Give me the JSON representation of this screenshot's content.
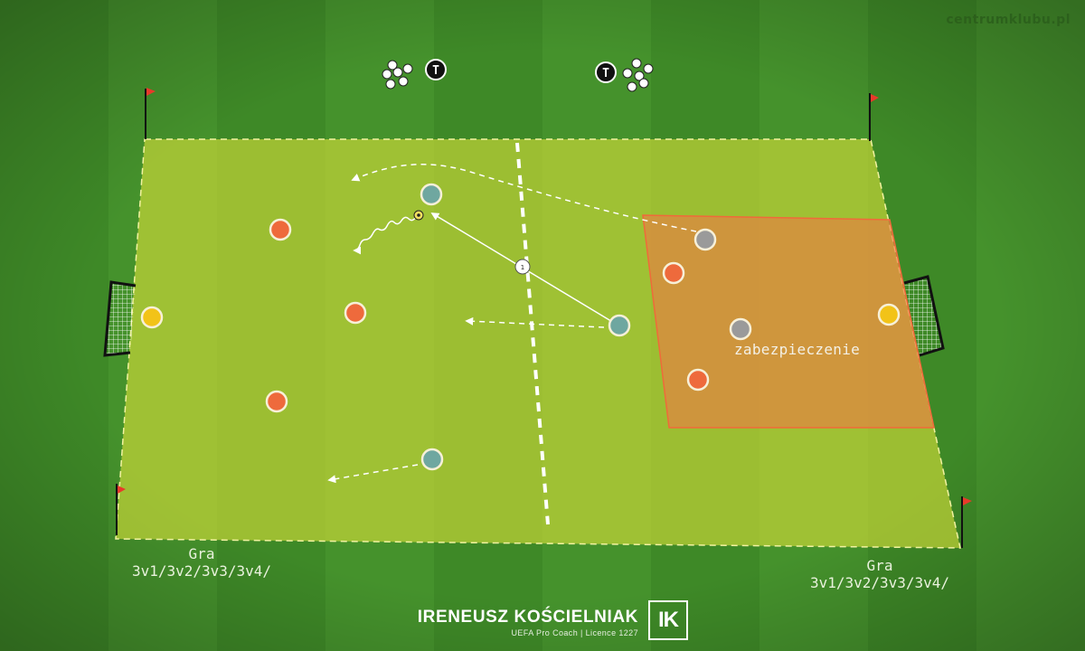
{
  "watermark": "centrumklubu.pl",
  "labels": {
    "left_game_line1": "Gra",
    "left_game_line2": "3v1/3v2/3v3/3v4/",
    "right_game_line1": "Gra",
    "right_game_line2": "3v1/3v2/3v3/3v4/",
    "zone": "zabezpieczenie"
  },
  "credit": {
    "name": "IRENEUSZ KOŚCIELNIAK",
    "subtitle": "UEFA Pro Coach  |  Licence 1227",
    "logo": "IK"
  },
  "markers": {
    "trainer_symbol": "T",
    "pass_number": "1"
  },
  "colors": {
    "grass_light": "#4c9a30",
    "grass_dark": "#3c8527",
    "field_zone": "#d7df3a",
    "security_zone": "#f07a45",
    "player_orange": "#ee6a3c",
    "player_teal": "#6fa7a0",
    "player_gray": "#9a9a9a",
    "goalkeeper_yellow": "#f2c318",
    "trainer": "#111111"
  }
}
